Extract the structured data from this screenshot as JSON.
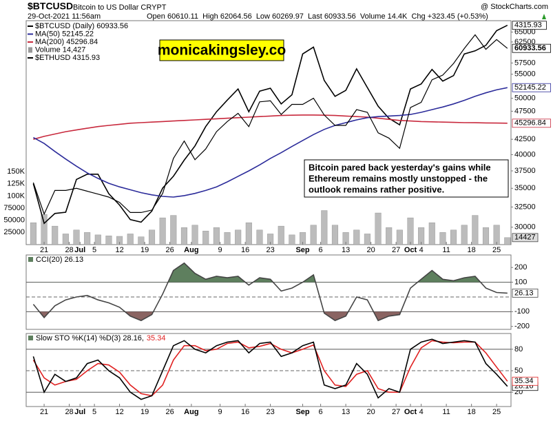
{
  "header": {
    "symbol": "$BTCUSD",
    "name": "Bitcoin to US Dollar CRYPT",
    "date": "29-Oct-2021 11:56am",
    "quote": "Open 60610.11  High 62064.56  Low 60269.97  Last 60933.56  Volume 14.4K  Chg +323.45 (+0.53%)",
    "source": "@ StockCharts.com"
  },
  "chart_data": [
    {
      "type": "line",
      "log_scale": true,
      "watermark": "monicakingsley.co",
      "annotation": [
        "Bitcoin pared back yesterday's gains while",
        "Ethereum remains mostly unstopped - the",
        "outlook remains rather positive."
      ],
      "x": [
        "2021-06-18",
        "2021-06-21",
        "2021-06-24",
        "2021-06-27",
        "2021-06-30",
        "2021-07-03",
        "2021-07-06",
        "2021-07-09",
        "2021-07-12",
        "2021-07-15",
        "2021-07-18",
        "2021-07-21",
        "2021-07-24",
        "2021-07-27",
        "2021-07-30",
        "2021-08-02",
        "2021-08-05",
        "2021-08-08",
        "2021-08-11",
        "2021-08-14",
        "2021-08-17",
        "2021-08-20",
        "2021-08-23",
        "2021-08-26",
        "2021-08-29",
        "2021-09-01",
        "2021-09-04",
        "2021-09-07",
        "2021-09-10",
        "2021-09-13",
        "2021-09-16",
        "2021-09-19",
        "2021-09-22",
        "2021-09-25",
        "2021-09-28",
        "2021-10-01",
        "2021-10-04",
        "2021-10-07",
        "2021-10-10",
        "2021-10-13",
        "2021-10-16",
        "2021-10-19",
        "2021-10-22",
        "2021-10-25",
        "2021-10-28"
      ],
      "xlim": [
        "2021-06-16",
        "2021-10-29"
      ],
      "xticks": [
        {
          "value": "2021-06-21",
          "label": "21"
        },
        {
          "value": "2021-06-28",
          "label": "28"
        },
        {
          "value": "2021-07-01",
          "label": "Jul"
        },
        {
          "value": "2021-07-05",
          "label": "5"
        },
        {
          "value": "2021-07-12",
          "label": "12"
        },
        {
          "value": "2021-07-19",
          "label": "19"
        },
        {
          "value": "2021-07-26",
          "label": "26"
        },
        {
          "value": "2021-08-01",
          "label": "Aug"
        },
        {
          "value": "2021-08-09",
          "label": "9"
        },
        {
          "value": "2021-08-16",
          "label": "16"
        },
        {
          "value": "2021-08-23",
          "label": "23"
        },
        {
          "value": "2021-09-01",
          "label": "Sep"
        },
        {
          "value": "2021-09-06",
          "label": "6"
        },
        {
          "value": "2021-09-13",
          "label": "13"
        },
        {
          "value": "2021-09-20",
          "label": "20"
        },
        {
          "value": "2021-09-27",
          "label": "27"
        },
        {
          "value": "2021-10-01",
          "label": "Oct"
        },
        {
          "value": "2021-10-04",
          "label": "4"
        },
        {
          "value": "2021-10-11",
          "label": "11"
        },
        {
          "value": "2021-10-18",
          "label": "18"
        },
        {
          "value": "2021-10-25",
          "label": "25"
        }
      ],
      "ylim": [
        28000,
        68000
      ],
      "yticks": [
        65000,
        62500,
        57500,
        55000,
        50000,
        47500,
        42500,
        40000,
        37500,
        35000,
        32500,
        30000
      ],
      "y2lim": [
        0,
        460000
      ],
      "y2ticks": [
        {
          "value": 150000,
          "label": "150K"
        },
        {
          "value": 125000,
          "label": "125K"
        },
        {
          "value": 100000,
          "label": "100K"
        },
        75000,
        50000,
        25000
      ],
      "y3lim": [
        1730,
        4400
      ],
      "series": [
        {
          "name": "$BTCUSD (Daily) 60933.56",
          "color": "#000000",
          "values": [
            35800,
            31600,
            34700,
            34700,
            35000,
            34600,
            34200,
            33800,
            33100,
            31800,
            31800,
            32100,
            34300,
            39400,
            42200,
            39200,
            40900,
            43800,
            45600,
            47100,
            44700,
            49300,
            49500,
            46900,
            48800,
            48800,
            50000,
            46800,
            44900,
            44900,
            47800,
            47300,
            43600,
            42700,
            41000,
            48200,
            49200,
            53800,
            54800,
            57400,
            60900,
            64300,
            60700,
            63100,
            60933.56
          ]
        },
        {
          "name": "MA(50) 52145.22",
          "color": "#2b2b9a",
          "values": [
            42800,
            41800,
            40500,
            39300,
            38200,
            37200,
            36400,
            35700,
            35200,
            34800,
            34400,
            34100,
            33900,
            33800,
            34000,
            34300,
            34700,
            35200,
            35900,
            36700,
            37500,
            38400,
            39400,
            40300,
            41300,
            42300,
            43300,
            44200,
            44900,
            45400,
            45900,
            46300,
            46500,
            46600,
            46700,
            46900,
            47300,
            47800,
            48300,
            48900,
            49600,
            50400,
            51100,
            51700,
            52145.22
          ]
        },
        {
          "name": "MA(200) 45296.84",
          "color": "#c8283c",
          "values": [
            42500,
            43000,
            43400,
            43800,
            44100,
            44400,
            44700,
            44900,
            45100,
            45300,
            45400,
            45500,
            45600,
            45700,
            45800,
            45900,
            46000,
            46100,
            46200,
            46300,
            46400,
            46500,
            46600,
            46700,
            46750,
            46800,
            46800,
            46750,
            46700,
            46600,
            46500,
            46400,
            46200,
            46000,
            45800,
            45700,
            45600,
            45550,
            45500,
            45450,
            45400,
            45380,
            45350,
            45320,
            45296.84
          ]
        },
        {
          "name": "Volume 14,427",
          "type": "bar",
          "axis": "y2",
          "color": "#bcbcbc",
          "values": [
            45000,
            62000,
            38000,
            22000,
            30000,
            25000,
            20000,
            18000,
            17000,
            22000,
            16000,
            30000,
            55000,
            60000,
            35000,
            40000,
            28000,
            35000,
            25000,
            30000,
            45000,
            30000,
            22000,
            38000,
            20000,
            25000,
            40000,
            70000,
            40000,
            25000,
            30000,
            22000,
            65000,
            35000,
            30000,
            55000,
            35000,
            45000,
            25000,
            30000,
            40000,
            60000,
            35000,
            40000,
            14427
          ]
        },
        {
          "name": "$ETHUSD 4315.93",
          "axis": "y3",
          "color": "#000000",
          "values": [
            2230,
            1890,
            1970,
            1980,
            2270,
            2320,
            2320,
            2140,
            2040,
            1920,
            1900,
            1990,
            2190,
            2300,
            2460,
            2610,
            2830,
            3010,
            3160,
            3310,
            3010,
            3280,
            3320,
            3110,
            3230,
            3830,
            3940,
            3430,
            3210,
            3290,
            3600,
            3330,
            3080,
            2930,
            2850,
            3310,
            3380,
            3590,
            3420,
            3500,
            3830,
            3880,
            3970,
            4220,
            4315.93
          ]
        }
      ]
    },
    {
      "type": "line",
      "title": "CCI(20) 26.13",
      "x": [
        "2021-06-18",
        "2021-06-21",
        "2021-06-24",
        "2021-06-27",
        "2021-06-30",
        "2021-07-03",
        "2021-07-06",
        "2021-07-09",
        "2021-07-12",
        "2021-07-15",
        "2021-07-18",
        "2021-07-21",
        "2021-07-24",
        "2021-07-27",
        "2021-07-30",
        "2021-08-02",
        "2021-08-05",
        "2021-08-08",
        "2021-08-11",
        "2021-08-14",
        "2021-08-17",
        "2021-08-20",
        "2021-08-23",
        "2021-08-26",
        "2021-08-29",
        "2021-09-01",
        "2021-09-04",
        "2021-09-07",
        "2021-09-10",
        "2021-09-13",
        "2021-09-16",
        "2021-09-19",
        "2021-09-22",
        "2021-09-25",
        "2021-09-28",
        "2021-10-01",
        "2021-10-04",
        "2021-10-07",
        "2021-10-10",
        "2021-10-13",
        "2021-10-16",
        "2021-10-19",
        "2021-10-22",
        "2021-10-25",
        "2021-10-28"
      ],
      "xlim": [
        "2021-06-16",
        "2021-10-29"
      ],
      "ylim": [
        -220,
        285
      ],
      "yticks": [
        200,
        100,
        -100,
        -200
      ],
      "hlines": [
        100,
        -100
      ],
      "dashed_line": 0,
      "fill_colors": [
        "#5e7f5e",
        "#8a6462"
      ],
      "series": [
        {
          "color": "#444444",
          "values": [
            -50,
            -140,
            -60,
            -20,
            0,
            10,
            -20,
            -40,
            -70,
            -130,
            -160,
            -120,
            20,
            180,
            230,
            160,
            120,
            140,
            130,
            140,
            80,
            130,
            120,
            40,
            60,
            100,
            150,
            -110,
            -160,
            -130,
            0,
            -20,
            -160,
            -130,
            -120,
            60,
            120,
            180,
            120,
            110,
            130,
            140,
            60,
            30,
            26.13
          ]
        }
      ]
    },
    {
      "type": "line",
      "title": "Slow STO %K(14) %D(3) 28.16,",
      "x": [
        "2021-06-18",
        "2021-06-21",
        "2021-06-24",
        "2021-06-27",
        "2021-06-30",
        "2021-07-03",
        "2021-07-06",
        "2021-07-09",
        "2021-07-12",
        "2021-07-15",
        "2021-07-18",
        "2021-07-21",
        "2021-07-24",
        "2021-07-27",
        "2021-07-30",
        "2021-08-02",
        "2021-08-05",
        "2021-08-08",
        "2021-08-11",
        "2021-08-14",
        "2021-08-17",
        "2021-08-20",
        "2021-08-23",
        "2021-08-26",
        "2021-08-29",
        "2021-09-01",
        "2021-09-04",
        "2021-09-07",
        "2021-09-10",
        "2021-09-13",
        "2021-09-16",
        "2021-09-19",
        "2021-09-22",
        "2021-09-25",
        "2021-09-28",
        "2021-10-01",
        "2021-10-04",
        "2021-10-07",
        "2021-10-10",
        "2021-10-13",
        "2021-10-16",
        "2021-10-19",
        "2021-10-22",
        "2021-10-25",
        "2021-10-28"
      ],
      "xlim": [
        "2021-06-16",
        "2021-10-29"
      ],
      "xticks": [
        {
          "value": "2021-06-21",
          "label": "21"
        },
        {
          "value": "2021-06-28",
          "label": "28"
        },
        {
          "value": "2021-07-01",
          "label": "Jul"
        },
        {
          "value": "2021-07-05",
          "label": "5"
        },
        {
          "value": "2021-07-12",
          "label": "12"
        },
        {
          "value": "2021-07-19",
          "label": "19"
        },
        {
          "value": "2021-07-26",
          "label": "26"
        },
        {
          "value": "2021-08-01",
          "label": "Aug"
        },
        {
          "value": "2021-08-09",
          "label": "9"
        },
        {
          "value": "2021-08-16",
          "label": "16"
        },
        {
          "value": "2021-08-23",
          "label": "23"
        },
        {
          "value": "2021-09-01",
          "label": "Sep"
        },
        {
          "value": "2021-09-06",
          "label": "6"
        },
        {
          "value": "2021-09-13",
          "label": "13"
        },
        {
          "value": "2021-09-20",
          "label": "20"
        },
        {
          "value": "2021-09-27",
          "label": "27"
        },
        {
          "value": "2021-10-01",
          "label": "Oct"
        },
        {
          "value": "2021-10-04",
          "label": "4"
        },
        {
          "value": "2021-10-11",
          "label": "11"
        },
        {
          "value": "2021-10-18",
          "label": "18"
        },
        {
          "value": "2021-10-25",
          "label": "25"
        }
      ],
      "ylim": [
        0,
        102
      ],
      "yticks": [
        80,
        50,
        20
      ],
      "hlines": [
        80,
        20
      ],
      "dashed_line": 50,
      "series": [
        {
          "color": "#000000",
          "values": [
            70,
            20,
            45,
            35,
            40,
            60,
            65,
            50,
            40,
            20,
            10,
            15,
            50,
            85,
            92,
            80,
            75,
            85,
            90,
            92,
            75,
            88,
            90,
            70,
            75,
            85,
            90,
            30,
            25,
            30,
            60,
            45,
            12,
            25,
            20,
            80,
            90,
            94,
            88,
            90,
            92,
            90,
            60,
            45,
            28.16
          ]
        },
        {
          "color": "#e02020",
          "values": [
            65,
            40,
            30,
            35,
            38,
            50,
            60,
            58,
            48,
            30,
            18,
            15,
            30,
            65,
            85,
            85,
            78,
            80,
            88,
            90,
            82,
            84,
            88,
            80,
            75,
            80,
            86,
            50,
            30,
            28,
            45,
            50,
            25,
            20,
            20,
            55,
            82,
            92,
            90,
            89,
            90,
            90,
            75,
            55,
            35.34
          ]
        }
      ]
    }
  ]
}
